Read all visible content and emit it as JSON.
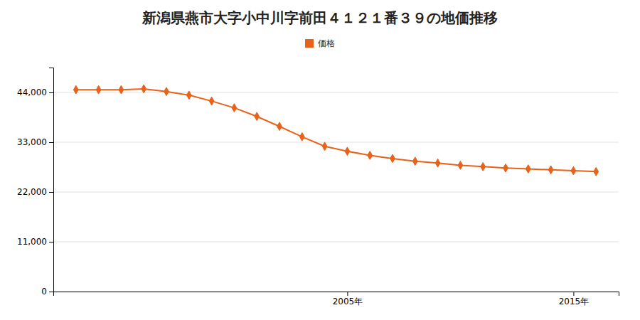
{
  "chart_data": {
    "type": "line",
    "title": "新潟県燕市大字小中川字前田４１２１番３９の地価推移",
    "x": [
      1993,
      1994,
      1995,
      1996,
      1997,
      1998,
      1999,
      2000,
      2001,
      2002,
      2003,
      2004,
      2005,
      2006,
      2007,
      2008,
      2009,
      2010,
      2011,
      2012,
      2013,
      2014,
      2015,
      2016
    ],
    "series": [
      {
        "name": "価格",
        "color": "#e8621a",
        "marker": "diamond",
        "values": [
          44600,
          44600,
          44600,
          44800,
          44200,
          43400,
          42100,
          40600,
          38700,
          36500,
          34200,
          32100,
          31000,
          30100,
          29400,
          28800,
          28400,
          27900,
          27600,
          27300,
          27100,
          26900,
          26700,
          26500
        ]
      }
    ],
    "xlim": [
      1992.0,
      2017.0
    ],
    "xticks": [
      {
        "value": 2005,
        "label": "2005年"
      },
      {
        "value": 2015,
        "label": "2015年"
      }
    ],
    "ylim": [
      0,
      49500
    ],
    "yticks": [
      0,
      {
        "value": 11000,
        "label": "11,000"
      },
      {
        "value": 22000,
        "label": "22,000"
      },
      {
        "value": 33000,
        "label": "33,000"
      },
      {
        "value": 44000,
        "label": "44,000"
      }
    ],
    "grid": "y",
    "legend": "top"
  }
}
